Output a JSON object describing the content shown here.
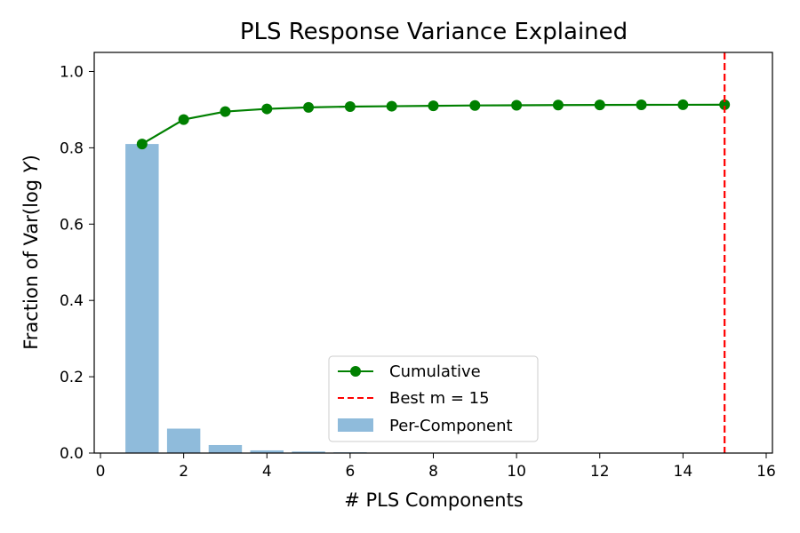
{
  "chart_data": {
    "type": "bar",
    "title": "PLS Response Variance Explained",
    "xlabel": "# PLS Components",
    "ylabel_prefix": "Fraction of Var(log ",
    "ylabel_var": "Y",
    "ylabel_suffix": ")",
    "xlim": [
      -0.15,
      16.15
    ],
    "ylim": [
      0,
      1.05
    ],
    "xticks": [
      0,
      2,
      4,
      6,
      8,
      10,
      12,
      14,
      16
    ],
    "yticks": [
      0.0,
      0.2,
      0.4,
      0.6,
      0.8,
      1.0
    ],
    "ytick_labels": [
      "0.0",
      "0.2",
      "0.4",
      "0.6",
      "0.8",
      "1.0"
    ],
    "x": [
      1,
      2,
      3,
      4,
      5,
      6,
      7,
      8,
      9,
      10,
      11,
      12,
      13,
      14,
      15
    ],
    "series": [
      {
        "name": "Per-Component",
        "kind": "bar",
        "color": "#8fbbdb",
        "values": [
          0.81,
          0.064,
          0.021,
          0.007,
          0.004,
          0.002,
          0.001,
          0.001,
          0.001,
          0.0005,
          0.0005,
          0.0003,
          0.0003,
          0.0002,
          0.0002
        ]
      },
      {
        "name": "Cumulative",
        "kind": "line",
        "color": "#008000",
        "values": [
          0.81,
          0.874,
          0.895,
          0.902,
          0.906,
          0.908,
          0.909,
          0.91,
          0.911,
          0.9115,
          0.912,
          0.9123,
          0.9126,
          0.9128,
          0.913
        ]
      }
    ],
    "reference_line": {
      "name": "Best m = 15",
      "x": 15,
      "color": "#ff0000",
      "style": "dashed"
    },
    "legend": {
      "placement": "lower-center",
      "entries": [
        "Cumulative",
        "Best m = 15",
        "Per-Component"
      ]
    },
    "grid": false
  }
}
